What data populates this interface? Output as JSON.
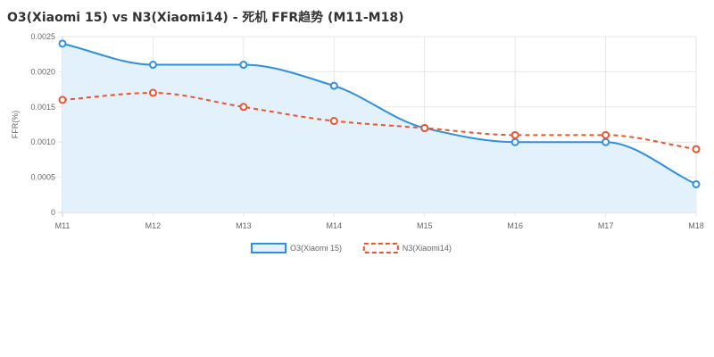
{
  "chart_data": {
    "type": "line",
    "title": "O3(Xiaomi 15) vs N3(Xiaomi14) - 死机 FFR趋势 (M11-M18)",
    "ylabel": "FFR(%)",
    "xlabel": "",
    "categories": [
      "M11",
      "M12",
      "M13",
      "M14",
      "M15",
      "M16",
      "M17",
      "M18"
    ],
    "ylim": [
      0,
      0.0025
    ],
    "yticks": [
      0,
      0.0005,
      0.001,
      0.0015,
      0.002,
      0.0025
    ],
    "ytick_labels": [
      "0",
      "0.0005",
      "0.0010",
      "0.0015",
      "0.0020",
      "0.0025"
    ],
    "grid": true,
    "legend_position": "bottom",
    "series": [
      {
        "name": "O3(Xiaomi 15)",
        "values": [
          0.0024,
          0.0021,
          0.0021,
          0.0018,
          0.0012,
          0.001,
          0.001,
          0.0004
        ],
        "color": "#2f8fe0",
        "fill": "#e3f1fc",
        "dashed": false,
        "area": true
      },
      {
        "name": "N3(Xiaomi14)",
        "values": [
          0.0016,
          0.0017,
          0.0015,
          0.0013,
          0.0012,
          0.0011,
          0.0011,
          0.0009
        ],
        "color": "#e8552f",
        "fill": "",
        "dashed": true,
        "area": false
      }
    ]
  }
}
